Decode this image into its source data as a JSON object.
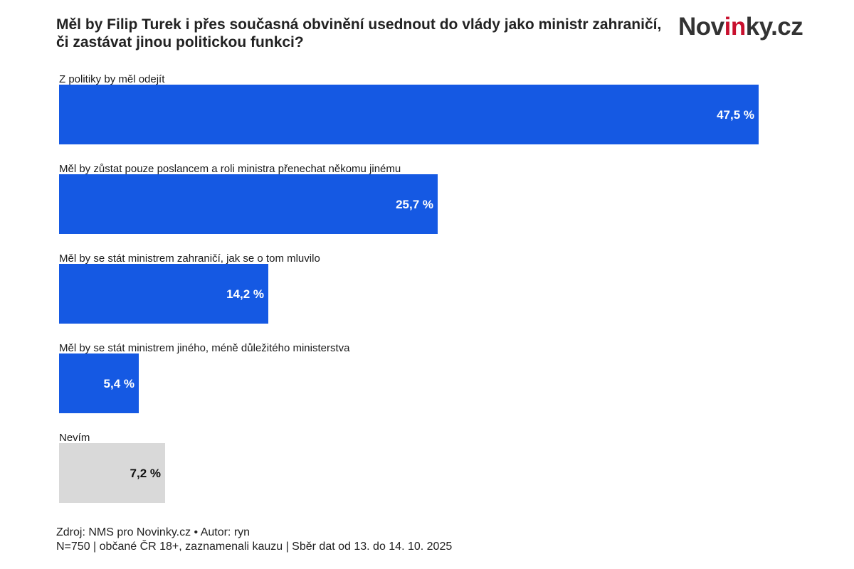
{
  "header": {
    "title": "Měl by Filip Turek i přes současná obvinění usednout do vlády jako ministr zahraničí, či zastávat jinou politickou funkci?",
    "logo": {
      "part1": "Nov",
      "part2": "in",
      "part3": "ky.cz"
    }
  },
  "footer": {
    "source": "Zdroj: NMS pro Novinky.cz • Autor: ryn",
    "note": "N=750 | občané ČR 18+, zaznamenali kauzu | Sběr dat od 13. do 14. 10. 2025"
  },
  "colors": {
    "primary_bar": "#1559e3",
    "neutral_bar": "#d9d9d9",
    "logo_accent": "#c8102e"
  },
  "chart_data": {
    "type": "bar",
    "orientation": "horizontal",
    "title": "Měl by Filip Turek i přes současná obvinění usednout do vlády jako ministr zahraničí, či zastávat jinou politickou funkci?",
    "categories": [
      "Z politiky by měl odejít",
      "Měl by zůstat pouze poslancem a roli ministra přenechat někomu jinému",
      "Měl by se stát ministrem zahraničí, jak se o tom mluvilo",
      "Měl by se stát ministrem jiného, méně důležitého ministerstva",
      "Nevím"
    ],
    "values": [
      47.5,
      25.7,
      14.2,
      5.4,
      7.2
    ],
    "value_labels": [
      "47,5 %",
      "25,7 %",
      "14,2 %",
      "5,4 %",
      "7,2 %"
    ],
    "bar_colors": [
      "#1559e3",
      "#1559e3",
      "#1559e3",
      "#1559e3",
      "#d9d9d9"
    ],
    "label_colors": [
      "#ffffff",
      "#ffffff",
      "#ffffff",
      "#ffffff",
      "#111111"
    ],
    "unit": "%",
    "xlim": [
      0,
      47.5
    ],
    "grid": false,
    "legend": "none"
  }
}
